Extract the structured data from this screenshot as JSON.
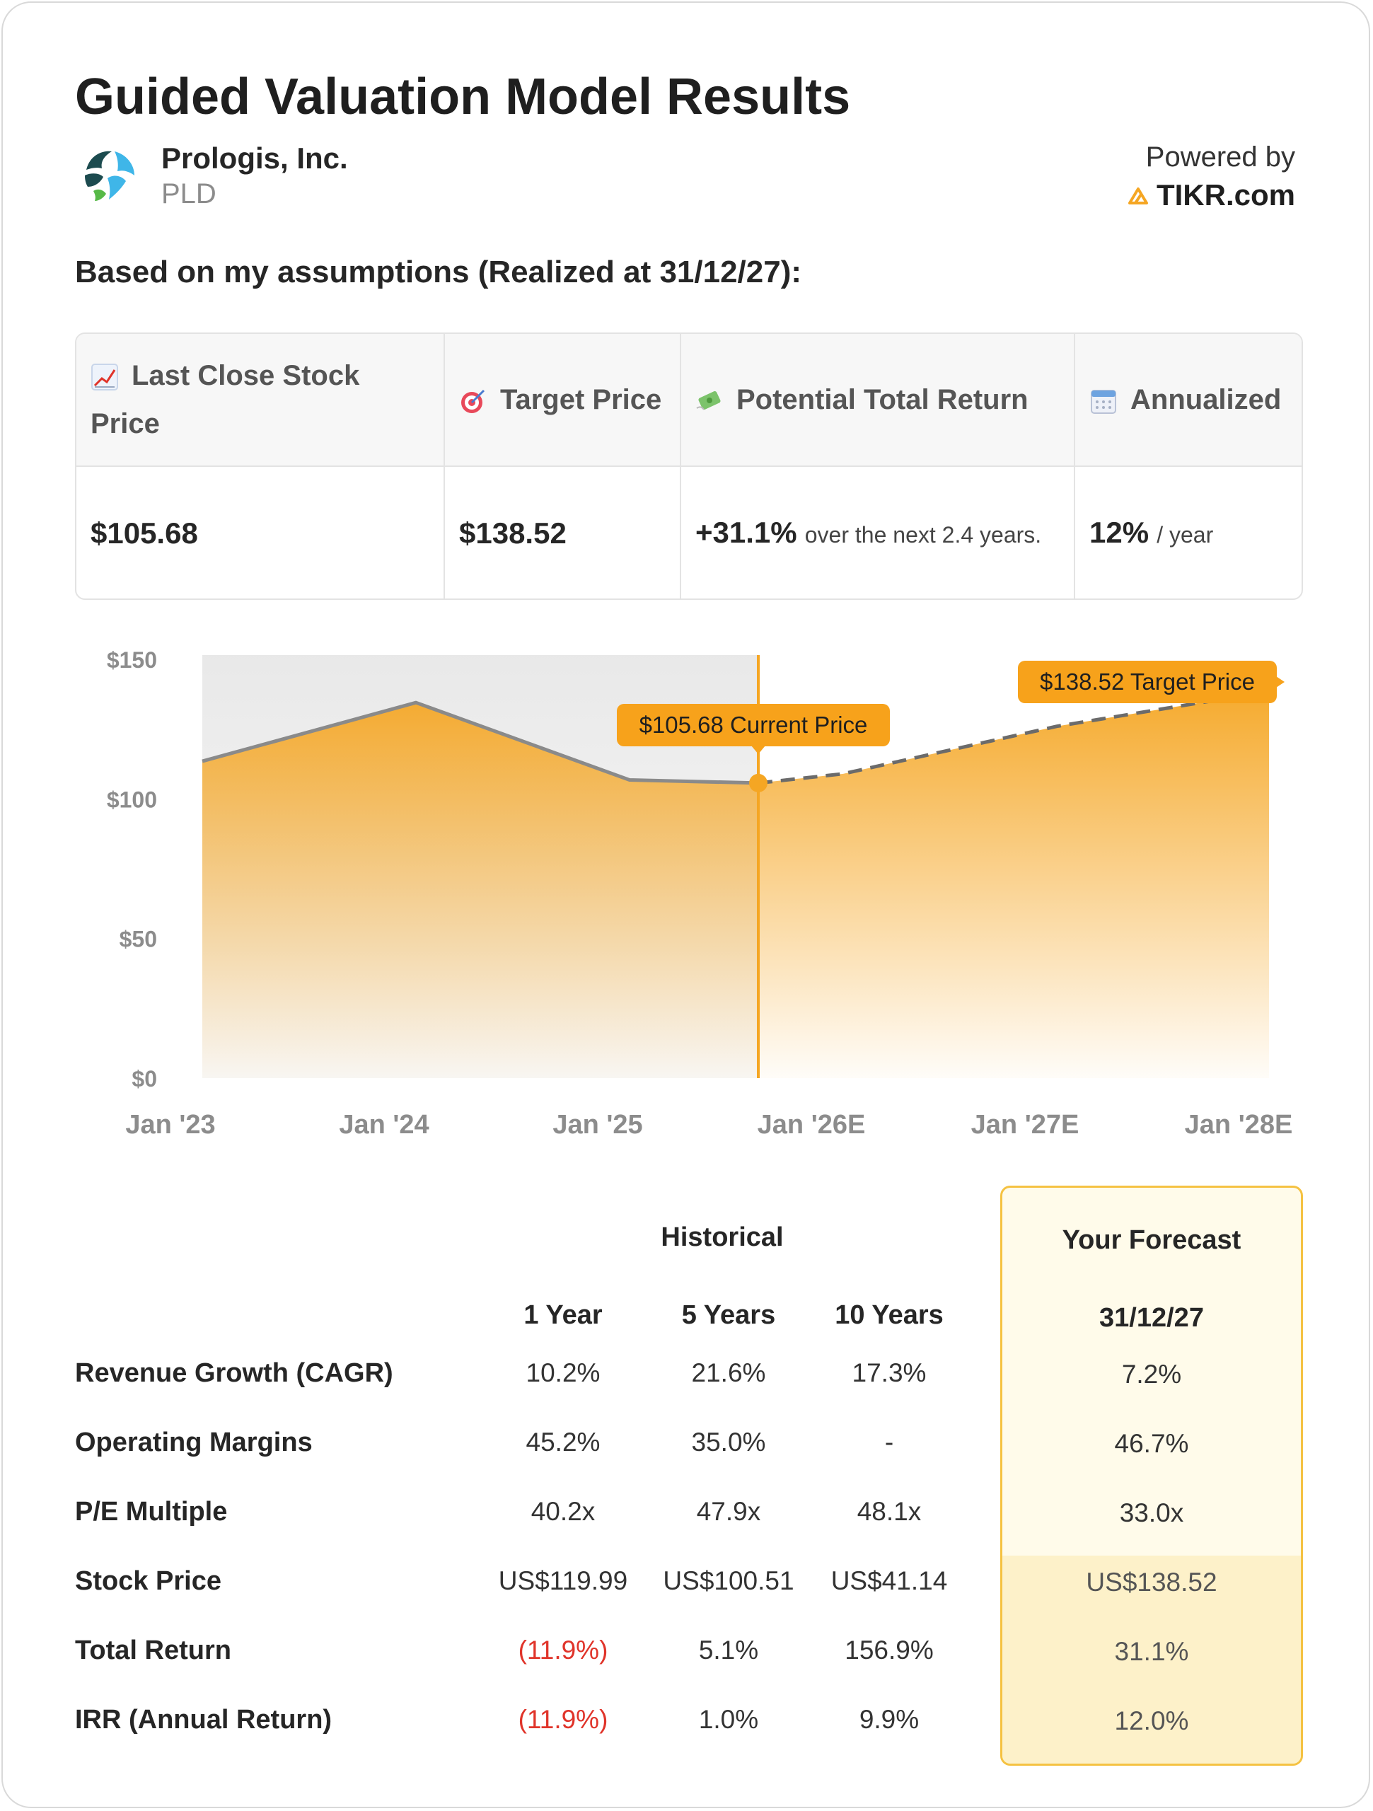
{
  "header": {
    "title": "Guided Valuation Model Results",
    "company_name": "Prologis, Inc.",
    "ticker": "PLD",
    "powered_by": "Powered by",
    "brand": "TIKR.com",
    "assumptions_text": "Based on my assumptions (Realized at 31/12/27):"
  },
  "summary": {
    "columns": [
      {
        "icon": "chart-increasing-icon",
        "label": "Last Close Stock Price",
        "value": "$105.68"
      },
      {
        "icon": "target-icon",
        "label": "Target Price",
        "value": "$138.52"
      },
      {
        "icon": "money-flying-icon",
        "label": "Potential Total Return",
        "value": "+31.1%",
        "suffix": "over the next 2.4 years."
      },
      {
        "icon": "calendar-icon",
        "label": "Annualized",
        "value": "12%",
        "suffix": "/ year"
      }
    ]
  },
  "chart_data": {
    "type": "area",
    "x": [
      "Jan '23",
      "Jan '24",
      "Jan '25",
      "Jan '26E",
      "Jan '27E",
      "Jan '28E"
    ],
    "xlim": [
      "Jan '23",
      "Jan '28E"
    ],
    "ylim": [
      0,
      150
    ],
    "yticks": [
      "$0",
      "$50",
      "$100",
      "$150"
    ],
    "series": [
      {
        "segment": "historical",
        "points": [
          [
            "Jan '23",
            113.5
          ],
          [
            "Jan '24",
            134.5
          ],
          [
            "Jan '25",
            106.8
          ],
          [
            "Current",
            105.68
          ]
        ]
      },
      {
        "segment": "forecast",
        "points": [
          [
            "Current",
            105.68
          ],
          [
            "Jan '26E",
            109
          ],
          [
            "Jan '27E",
            126
          ],
          [
            "Jan '28E",
            138.52
          ]
        ]
      }
    ],
    "annotations": [
      {
        "label": "$105.68 Current Price",
        "value": 105.68
      },
      {
        "label": "$138.52 Target Price",
        "value": 138.52
      }
    ],
    "colors": {
      "fill": "#f5a623",
      "line": "#8a8a8a",
      "marker": "#f5a623",
      "label_bg": "#f7a21b"
    },
    "grid": false,
    "legend": "none"
  },
  "metrics": {
    "historical_label": "Historical",
    "forecast_label": "Your Forecast",
    "column_headers": [
      "1 Year",
      "5 Years",
      "10 Years"
    ],
    "forecast_date": "31/12/27",
    "rows": [
      {
        "label": "Revenue Growth (CAGR)",
        "values": [
          "10.2%",
          "21.6%",
          "17.3%"
        ],
        "forecast": "7.2%"
      },
      {
        "label": "Operating Margins",
        "values": [
          "45.2%",
          "35.0%",
          "-"
        ],
        "forecast": "46.7%"
      },
      {
        "label": "P/E Multiple",
        "values": [
          "40.2x",
          "47.9x",
          "48.1x"
        ],
        "forecast": "33.0x"
      },
      {
        "label": "Stock Price",
        "values": [
          "US$119.99",
          "US$100.51",
          "US$41.14"
        ],
        "forecast": "US$138.52"
      },
      {
        "label": "Total Return",
        "values": [
          "(11.9%)",
          "5.1%",
          "156.9%"
        ],
        "forecast": "31.1%"
      },
      {
        "label": "IRR (Annual Return)",
        "values": [
          "(11.9%)",
          "1.0%",
          "9.9%"
        ],
        "forecast": "12.0%"
      }
    ]
  }
}
